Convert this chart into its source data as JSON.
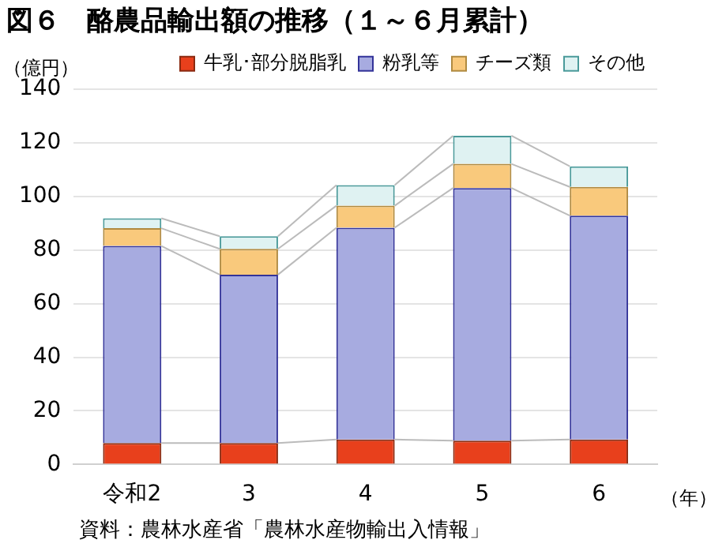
{
  "chart_data": {
    "type": "bar",
    "title": "図６　酪農品輸出額の推移（１～６月累計）",
    "ylabel": "（億円）",
    "xlabel": "（年）",
    "categories": [
      "令和2",
      "3",
      "4",
      "5",
      "6"
    ],
    "series": [
      {
        "name": "牛乳･部分脱脂乳",
        "color": "#e8401c",
        "values": [
          8,
          8,
          9.3,
          8.9,
          9.3
        ]
      },
      {
        "name": "粉乳等",
        "color": "#a7abe0",
        "values": [
          73.5,
          62.8,
          79,
          94.2,
          83.5
        ]
      },
      {
        "name": "チーズ類",
        "color": "#f9c97c",
        "values": [
          6.6,
          9.6,
          8.2,
          9,
          10.7
        ]
      },
      {
        "name": "その他",
        "color": "#dff2f2",
        "values": [
          3.7,
          4.7,
          7.7,
          10.5,
          7.7
        ]
      }
    ],
    "stacked": true,
    "ylim": [
      0,
      140
    ],
    "yticks": [
      0,
      20,
      40,
      60,
      80,
      100,
      120,
      140
    ],
    "grid": "y",
    "legend": "top",
    "annotations": [
      "資料：農林水産省「農林水産物輸出入情報」"
    ]
  }
}
